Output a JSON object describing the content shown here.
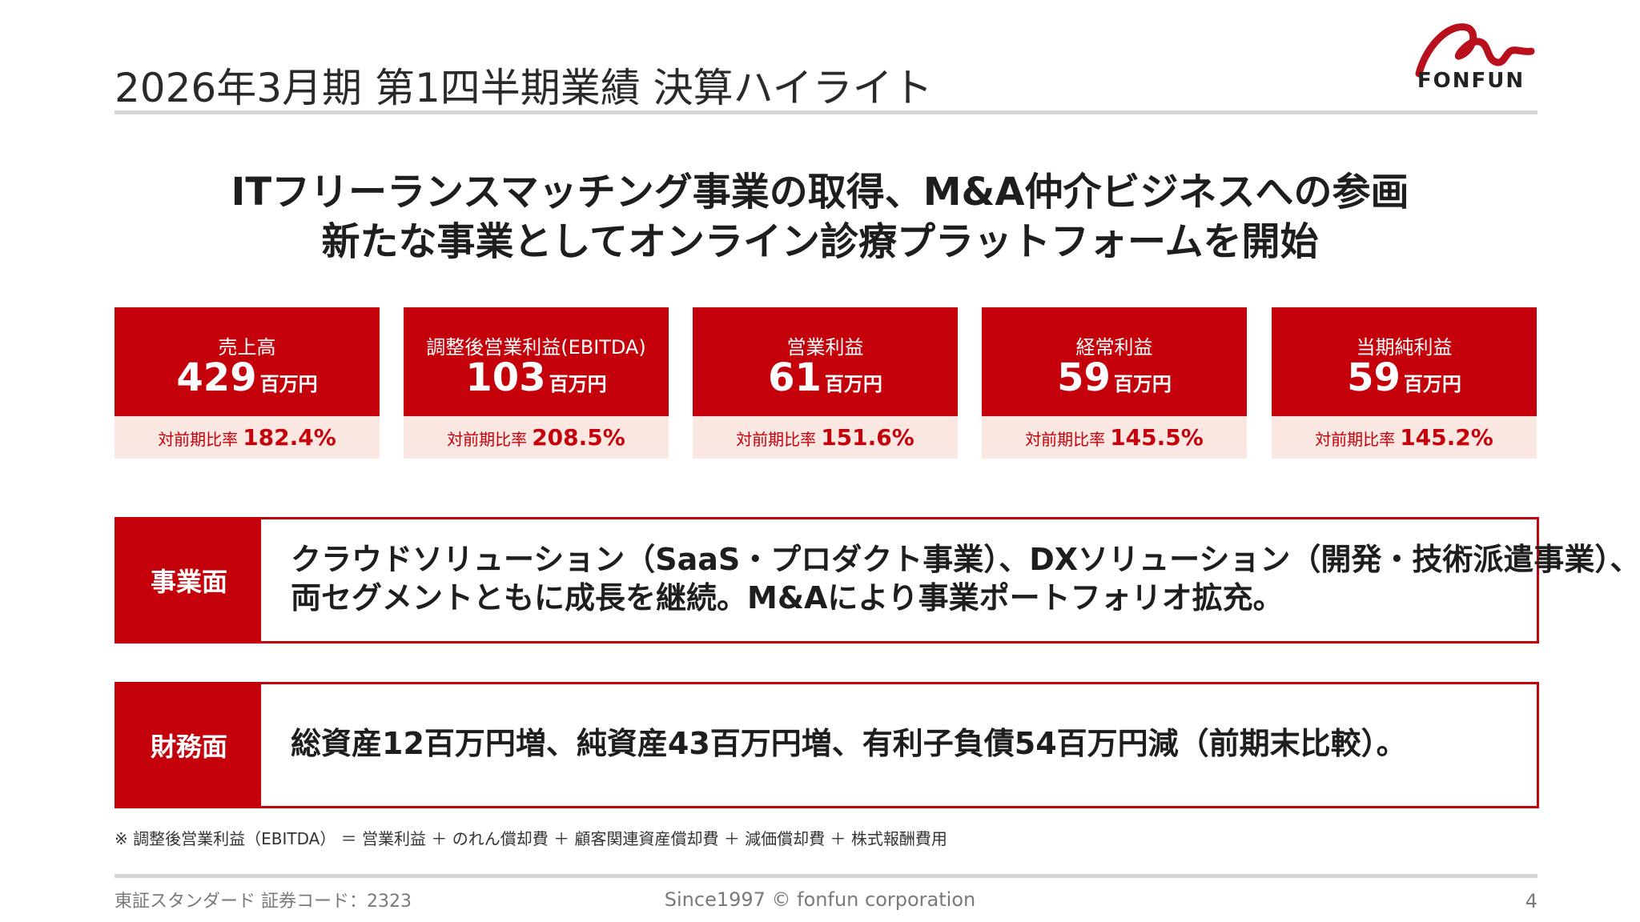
{
  "header": {
    "title": "2026年3月期 第1四半期業績 決算ハイライト",
    "logo_text": "FONFUN"
  },
  "headline": {
    "line1": "ITフリーランスマッチング事業の取得、M&A仲介ビジネスへの参画",
    "line2": "新たな事業としてオンライン診療プラットフォームを開始"
  },
  "kpis": [
    {
      "label": "売上高",
      "value": "429",
      "unit": "百万円",
      "yoy_label": "対前期比率",
      "yoy_value": "182.4%"
    },
    {
      "label": "調整後営業利益(EBITDA)",
      "value": "103",
      "unit": "百万円",
      "yoy_label": "対前期比率",
      "yoy_value": "208.5%"
    },
    {
      "label": "営業利益",
      "value": "61",
      "unit": "百万円",
      "yoy_label": "対前期比率",
      "yoy_value": "151.6%"
    },
    {
      "label": "経常利益",
      "value": "59",
      "unit": "百万円",
      "yoy_label": "対前期比率",
      "yoy_value": "145.5%"
    },
    {
      "label": "当期純利益",
      "value": "59",
      "unit": "百万円",
      "yoy_label": "対前期比率",
      "yoy_value": "145.2%"
    }
  ],
  "business": {
    "label": "事業面",
    "line1": "クラウドソリューション（SaaS・プロダクト事業）、DXソリューション（開発・技術派遣事業）、",
    "line2": "両セグメントともに成長を継続。M&Aにより事業ポートフォリオ拡充。"
  },
  "finance": {
    "label": "財務面",
    "text": "総資産12百万円増、純資産43百万円増、有利子負債54百万円減（前期末比較）。"
  },
  "footnote": "※ 調整後営業利益（EBITDA） ＝ 営業利益 ＋ のれん償却費 ＋ 顧客関連資産償却費 ＋ 減価償却費 ＋ 株式報酬費用",
  "footer": {
    "left": "東証スタンダード 証券コード：2323",
    "center": "Since1997 © fonfun corporation",
    "page": "4"
  },
  "colors": {
    "brand_red": "#c4000b",
    "light_pink": "#fbe7e2"
  }
}
